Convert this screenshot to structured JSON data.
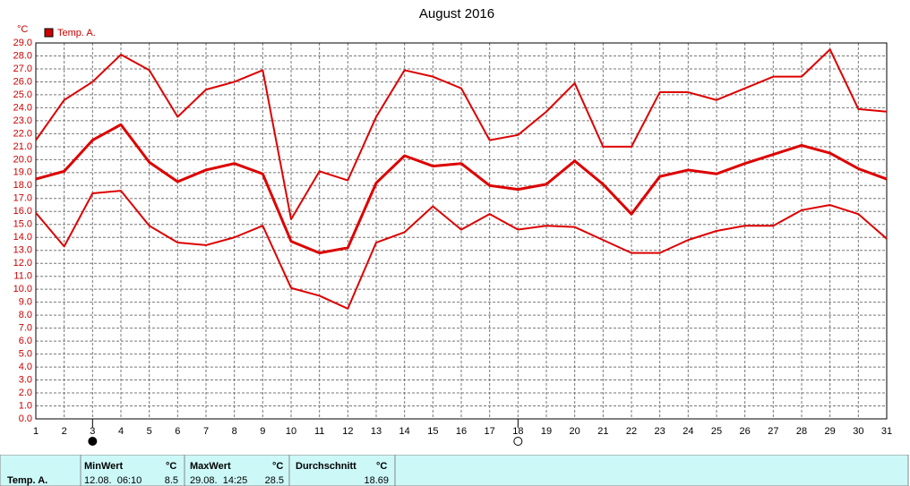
{
  "chart_data": {
    "type": "line",
    "title": "August 2016",
    "y_unit": "°C",
    "legend": {
      "label": "Temp. A.",
      "color": "#cc0000",
      "position": "top-left"
    },
    "x": [
      1,
      2,
      3,
      4,
      5,
      6,
      7,
      8,
      9,
      10,
      11,
      12,
      13,
      14,
      15,
      16,
      17,
      18,
      19,
      20,
      21,
      22,
      23,
      24,
      25,
      26,
      27,
      28,
      29,
      30,
      31
    ],
    "xlim": [
      1,
      31
    ],
    "xticks": [
      1,
      2,
      3,
      4,
      5,
      6,
      7,
      8,
      9,
      10,
      11,
      12,
      13,
      14,
      15,
      16,
      17,
      18,
      19,
      20,
      21,
      22,
      23,
      24,
      25,
      26,
      27,
      28,
      29,
      30,
      31
    ],
    "ylim": [
      0,
      29
    ],
    "yticks": [
      {
        "value": 0,
        "label": "0.0"
      },
      {
        "value": 1,
        "label": "1.0"
      },
      {
        "value": 2,
        "label": "2.0"
      },
      {
        "value": 3,
        "label": "3.0"
      },
      {
        "value": 4,
        "label": "4.0"
      },
      {
        "value": 5,
        "label": "5.0"
      },
      {
        "value": 6,
        "label": "6.0"
      },
      {
        "value": 7,
        "label": "7.0"
      },
      {
        "value": 8,
        "label": "8.0"
      },
      {
        "value": 9,
        "label": "9.0"
      },
      {
        "value": 10,
        "label": "10.0"
      },
      {
        "value": 11,
        "label": "11.0"
      },
      {
        "value": 12,
        "label": "12.0"
      },
      {
        "value": 13,
        "label": "13.0"
      },
      {
        "value": 14,
        "label": "14.0"
      },
      {
        "value": 15,
        "label": "15.0"
      },
      {
        "value": 16,
        "label": "16.0"
      },
      {
        "value": 17,
        "label": "17.0"
      },
      {
        "value": 18,
        "label": "18.0"
      },
      {
        "value": 19,
        "label": "19.0"
      },
      {
        "value": 20,
        "label": "20.0"
      },
      {
        "value": 21,
        "label": "21.0"
      },
      {
        "value": 22,
        "label": "22.0"
      },
      {
        "value": 23,
        "label": "23.0"
      },
      {
        "value": 24,
        "label": "24.0"
      },
      {
        "value": 25,
        "label": "25.0"
      },
      {
        "value": 26,
        "label": "26.0"
      },
      {
        "value": 27,
        "label": "27.0"
      },
      {
        "value": 28,
        "label": "28.0"
      },
      {
        "value": 29,
        "label": "29.0"
      }
    ],
    "grid": true,
    "series": [
      {
        "color": "#dd0000",
        "line_width": 2,
        "values": [
          21.5,
          24.6,
          26.0,
          28.1,
          26.9,
          23.3,
          25.4,
          26.0,
          26.9,
          15.4,
          19.1,
          18.4,
          23.3,
          26.9,
          26.4,
          25.5,
          21.5,
          21.9,
          23.7,
          25.9,
          21.0,
          21.0,
          25.2,
          25.2,
          24.6,
          25.5,
          26.4,
          26.4,
          28.5,
          23.9,
          23.7
        ]
      },
      {
        "color": "#dd0000",
        "line_width": 3,
        "values": [
          18.5,
          19.1,
          21.5,
          22.7,
          19.8,
          18.3,
          19.2,
          19.7,
          18.9,
          13.7,
          12.8,
          13.2,
          18.2,
          20.3,
          19.5,
          19.7,
          18.0,
          17.7,
          18.1,
          19.9,
          18.1,
          15.8,
          18.7,
          19.2,
          18.9,
          19.7,
          20.4,
          21.1,
          20.5,
          19.3,
          18.5
        ]
      },
      {
        "color": "#dd0000",
        "line_width": 2,
        "values": [
          15.9,
          13.3,
          17.4,
          17.6,
          14.9,
          13.6,
          13.4,
          14.0,
          14.9,
          10.1,
          9.5,
          8.5,
          13.6,
          14.4,
          16.4,
          14.6,
          15.8,
          14.6,
          14.9,
          14.8,
          13.8,
          12.8,
          12.8,
          13.8,
          14.5,
          14.9,
          14.9,
          16.1,
          16.5,
          15.8,
          13.9
        ]
      }
    ],
    "moon_markers": [
      {
        "x": 3,
        "filled": true
      },
      {
        "x": 18,
        "filled": false
      }
    ]
  },
  "table": {
    "row_label": "Temp. A.",
    "min": {
      "header": "MinWert",
      "unit": "°C",
      "time": "12.08.  06:10",
      "value": 8.5
    },
    "max": {
      "header": "MaxWert",
      "unit": "°C",
      "time": "29.08.  14:25",
      "value": 28.5
    },
    "avg": {
      "header": "Durchschnitt",
      "unit": "°C",
      "value": 18.69
    }
  }
}
